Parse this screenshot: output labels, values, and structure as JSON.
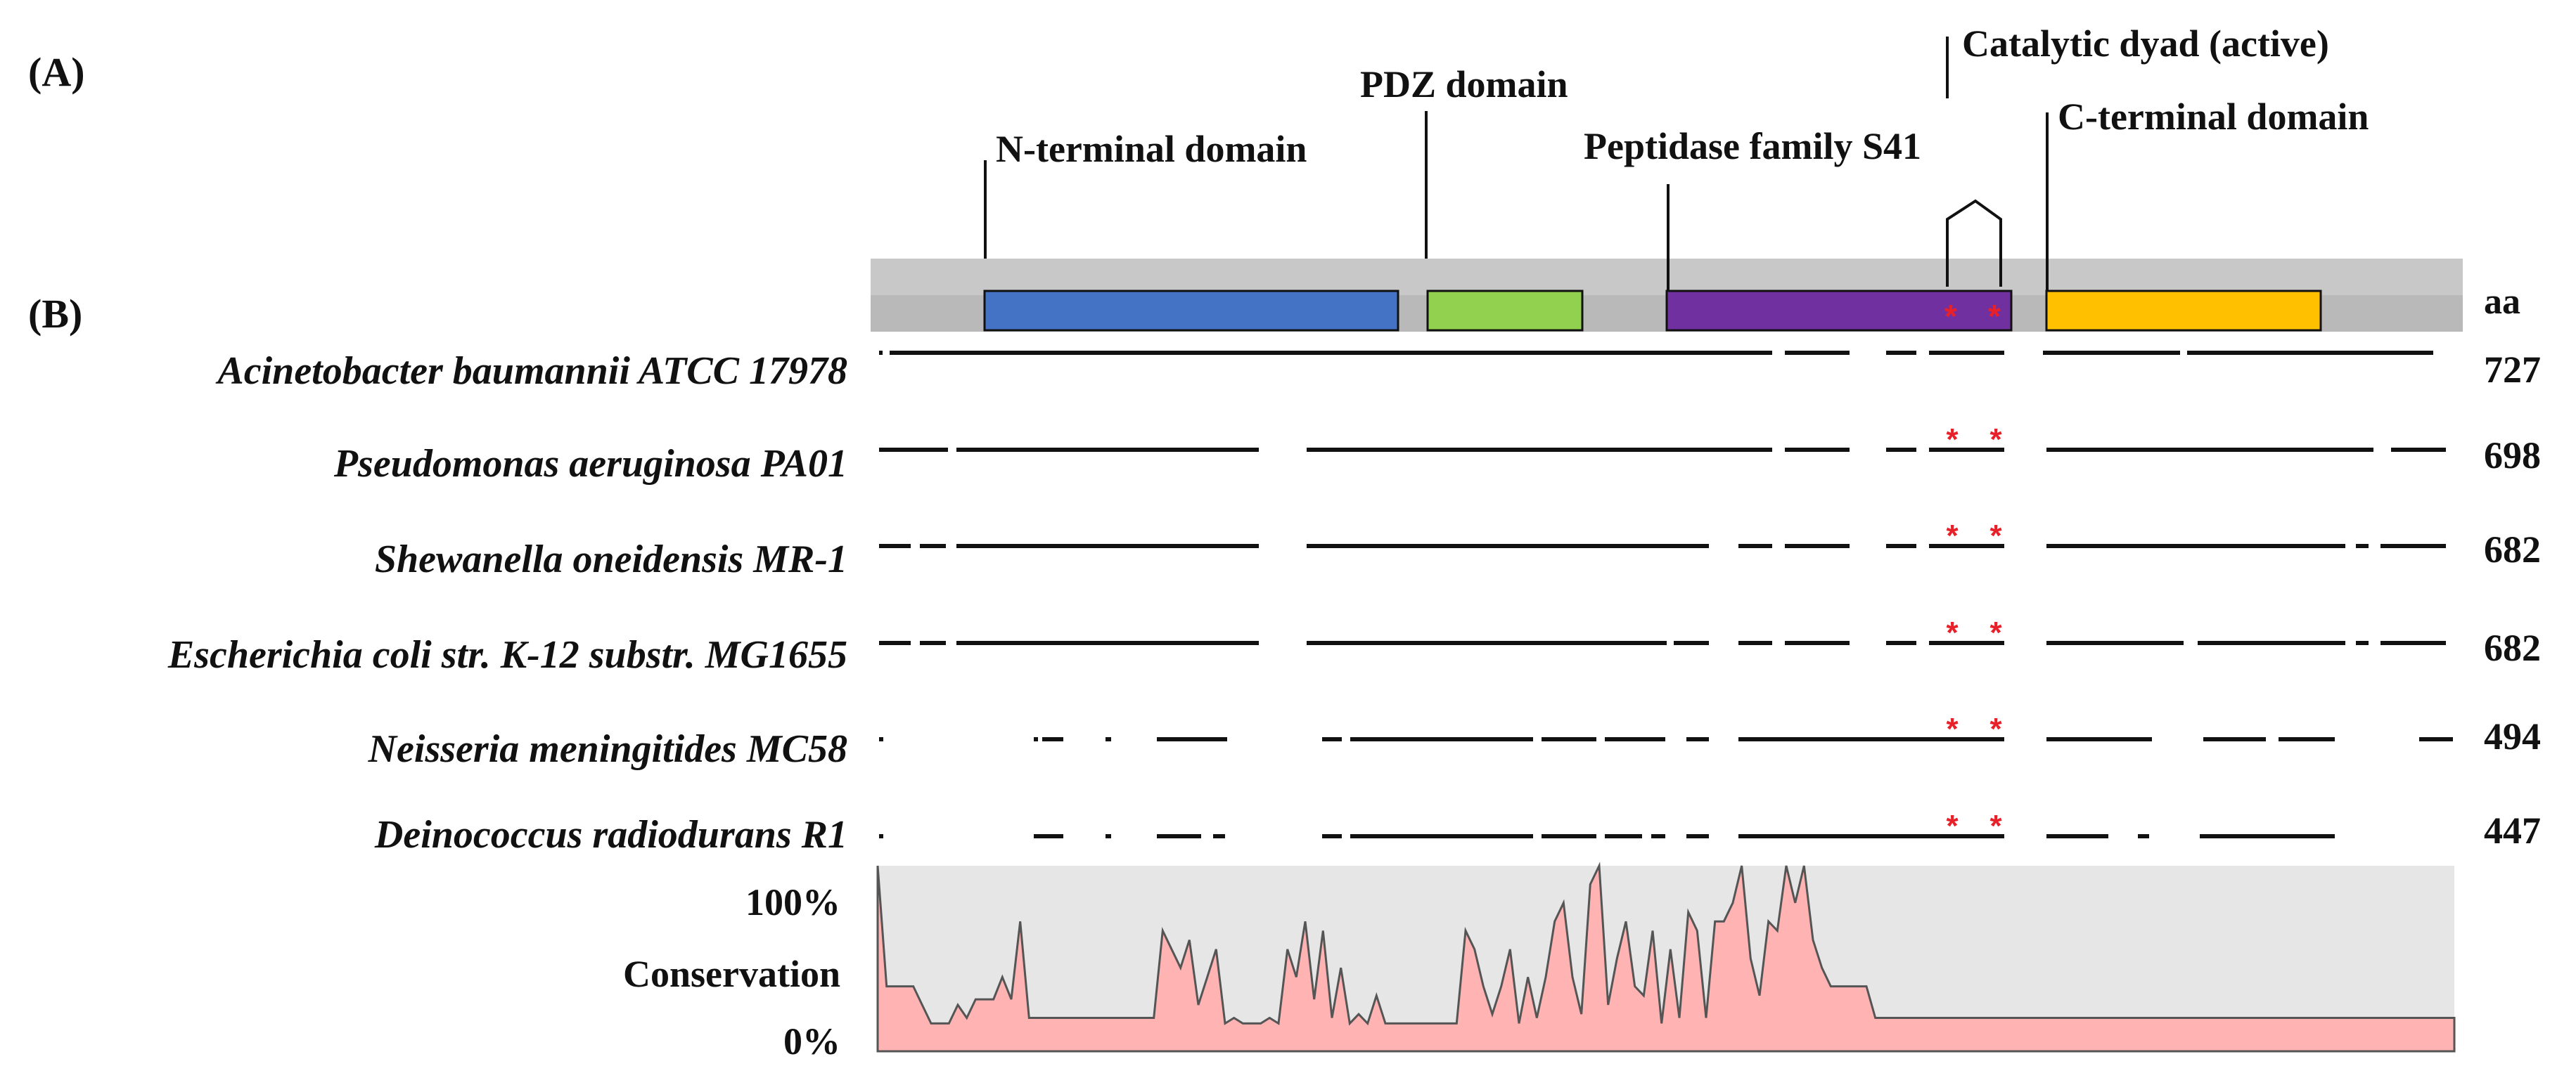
{
  "panel_labels": {
    "a": "(A)",
    "b": "(B)"
  },
  "colors": {
    "n_terminal": "#4472C4",
    "pdz": "#92D050",
    "peptidase": "#7030A0",
    "c_terminal": "#FFC000",
    "track_bg": "#C8C8C8",
    "asterisk": "#E8202A",
    "conservation_fill": "#FFB3B3",
    "conservation_bg": "#E6E6E6"
  },
  "domains": [
    {
      "key": "n_terminal",
      "label": "N-terminal domain"
    },
    {
      "key": "pdz",
      "label": "PDZ domain"
    },
    {
      "key": "peptidase",
      "label": "Peptidase family S41"
    },
    {
      "key": "c_terminal",
      "label": "C-terminal domain"
    }
  ],
  "catalytic_label": "Catalytic dyad  (active)",
  "aa_header": "aa",
  "asterisk": "*",
  "species": [
    {
      "name": "Acinetobacter baumannii ATCC 17978",
      "length": "727"
    },
    {
      "name": "Pseudomonas aeruginosa PA01",
      "length": "698"
    },
    {
      "name": "Shewanella oneidensis MR-1",
      "length": "682"
    },
    {
      "name": "Escherichia coli str. K-12 substr. MG1655",
      "length": "682"
    },
    {
      "name": "Neisseria meningitides MC58",
      "length": "494"
    },
    {
      "name": "Deinococcus radiodurans R1",
      "length": "447"
    }
  ],
  "conservation": {
    "label": "Conservation",
    "max_label": "100%",
    "min_label": "0%",
    "values": [
      100,
      35,
      35,
      35,
      35,
      25,
      15,
      15,
      15,
      25,
      18,
      28,
      28,
      28,
      40,
      28,
      70,
      18,
      18,
      18,
      18,
      18,
      18,
      18,
      18,
      18,
      18,
      18,
      18,
      18,
      18,
      18,
      65,
      55,
      45,
      60,
      25,
      40,
      55,
      15,
      18,
      15,
      15,
      15,
      18,
      15,
      55,
      40,
      70,
      28,
      65,
      18,
      45,
      15,
      20,
      15,
      30,
      15,
      15,
      15,
      15,
      15,
      15,
      15,
      15,
      15,
      65,
      55,
      35,
      20,
      35,
      55,
      15,
      40,
      18,
      40,
      70,
      80,
      40,
      20,
      90,
      100,
      25,
      50,
      70,
      35,
      30,
      65,
      15,
      55,
      18,
      75,
      65,
      18,
      70,
      70,
      80,
      100,
      50,
      30,
      70,
      65,
      100,
      80,
      100,
      60,
      45,
      35,
      35,
      35,
      35,
      35,
      18,
      18,
      18,
      18,
      18,
      18,
      18,
      18,
      18,
      18,
      18,
      18,
      18,
      18,
      18,
      18,
      18,
      18,
      18,
      18,
      18,
      18,
      18,
      18,
      18,
      18,
      18,
      18,
      18,
      18,
      18,
      18,
      18,
      18,
      18,
      18,
      18,
      18,
      18,
      18,
      18,
      18,
      18,
      18,
      18,
      18,
      18,
      18,
      18,
      18,
      18,
      18,
      18,
      18,
      18,
      18,
      18,
      18,
      18,
      18,
      18,
      18,
      18,
      18,
      18,
      18
    ]
  }
}
